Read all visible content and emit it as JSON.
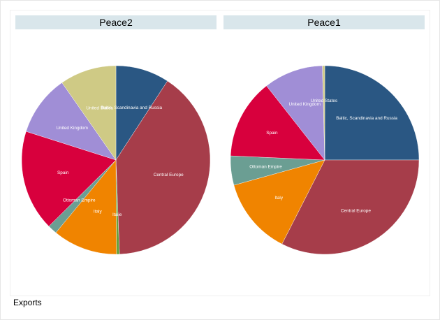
{
  "chart_data": [
    {
      "type": "pie",
      "title": "Peace2",
      "start_angle_deg": 0,
      "direction": "clockwise",
      "slices": [
        {
          "label": "Baltic, Scandinavia and Russia",
          "value": 9.2,
          "color": "#2a5783"
        },
        {
          "label": "Central Europe",
          "value": 40.2,
          "color": "#a63d4a"
        },
        {
          "label": "Italie",
          "value": 0.5,
          "color": "#63a33f"
        },
        {
          "label": "Italy",
          "value": 11.1,
          "color": "#f08400"
        },
        {
          "label": "Ottoman Empire",
          "value": 1.6,
          "color": "#6b9e93"
        },
        {
          "label": "Spain",
          "value": 17.3,
          "color": "#d8003d"
        },
        {
          "label": "United Kingdom",
          "value": 10.4,
          "color": "#a08ed6"
        },
        {
          "label": "United States",
          "value": 9.7,
          "color": "#cfca85"
        }
      ]
    },
    {
      "type": "pie",
      "title": "Peace1",
      "start_angle_deg": 0,
      "direction": "clockwise",
      "slices": [
        {
          "label": "Baltic, Scandinavia and Russia",
          "value": 25.0,
          "color": "#2a5783"
        },
        {
          "label": "Central Europe",
          "value": 32.5,
          "color": "#a63d4a"
        },
        {
          "label": "Italy",
          "value": 13.2,
          "color": "#f08400"
        },
        {
          "label": "Ottoman Empire",
          "value": 5.0,
          "color": "#6b9e93"
        },
        {
          "label": "Spain",
          "value": 13.7,
          "color": "#d8003d"
        },
        {
          "label": "United Kingdom",
          "value": 10.2,
          "color": "#a08ed6"
        },
        {
          "label": "United States",
          "value": 0.4,
          "color": "#cfca85"
        }
      ]
    }
  ],
  "note": "Exports"
}
